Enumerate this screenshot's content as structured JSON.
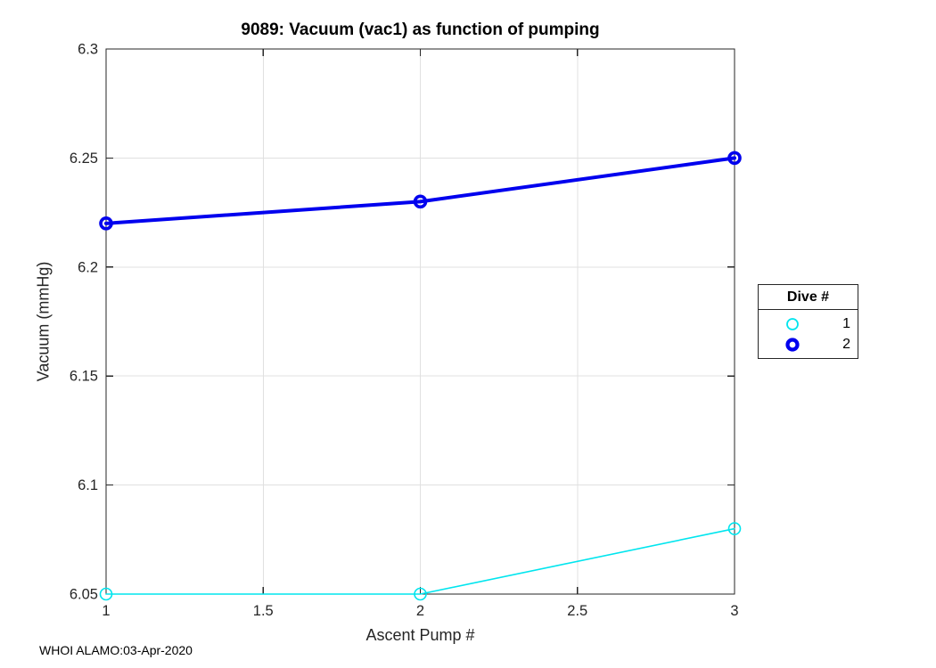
{
  "footer": "WHOI ALAMO:03-Apr-2020",
  "chart_data": {
    "type": "line",
    "title": "9089: Vacuum (vac1) as function of pumping",
    "xlabel": "Ascent Pump #",
    "ylabel": "Vacuum (mmHg)",
    "xlim": [
      1,
      3
    ],
    "ylim": [
      6.05,
      6.3
    ],
    "xticks": [
      1,
      1.5,
      2,
      2.5,
      3
    ],
    "xtick_labels": [
      "1",
      "1.5",
      "2",
      "2.5",
      "3"
    ],
    "yticks": [
      6.05,
      6.1,
      6.15,
      6.2,
      6.25,
      6.3
    ],
    "ytick_labels": [
      "6.05",
      "6.1",
      "6.15",
      "6.2",
      "6.25",
      "6.3"
    ],
    "grid": true,
    "grid_color": "#e0e0e0",
    "axis_color": "#262626",
    "legend_title": "Dive #",
    "legend_position": "outside-right",
    "x": [
      1,
      2,
      3
    ],
    "series": [
      {
        "name": "1",
        "values": [
          6.05,
          6.05,
          6.08
        ],
        "color": "#00e5ee",
        "line_width": 1.6,
        "marker": "circle",
        "marker_radius": 6.5,
        "marker_stroke": 1.6,
        "legend_marker_radius": 6,
        "legend_marker_stroke": 1.8
      },
      {
        "name": "2",
        "values": [
          6.22,
          6.23,
          6.25
        ],
        "color": "#0000ee",
        "line_width": 4,
        "marker": "circle",
        "marker_radius": 6,
        "marker_stroke": 3.6,
        "legend_marker_radius": 5.5,
        "legend_marker_stroke": 4.2
      }
    ]
  }
}
